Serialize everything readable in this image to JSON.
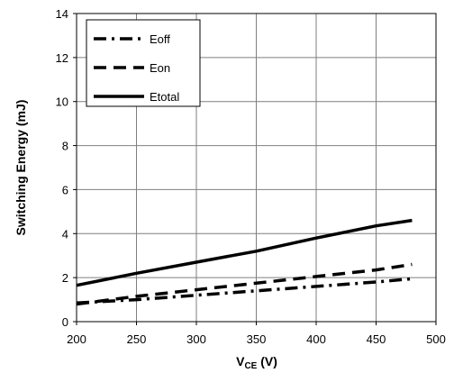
{
  "chart_data": {
    "type": "line",
    "xlabel_main": "V",
    "xlabel_sub": "CE",
    "xlabel_unit": " (V)",
    "ylabel": "Switching Energy (mJ)",
    "xlim": [
      200,
      500
    ],
    "ylim": [
      0,
      14
    ],
    "x_ticks": [
      "200",
      "250",
      "300",
      "350",
      "400",
      "450",
      "500"
    ],
    "y_ticks": [
      "0",
      "2",
      "4",
      "6",
      "8",
      "10",
      "12",
      "14"
    ],
    "grid": true,
    "legend_position": "top-left",
    "series": [
      {
        "name": "Eoff",
        "style": "dash-dot",
        "color": "#000000",
        "x": [
          200,
          250,
          300,
          350,
          400,
          450,
          480
        ],
        "y": [
          0.85,
          1.0,
          1.2,
          1.4,
          1.6,
          1.8,
          1.95
        ]
      },
      {
        "name": "Eon",
        "style": "dash",
        "color": "#000000",
        "x": [
          200,
          250,
          300,
          350,
          400,
          450,
          480
        ],
        "y": [
          0.8,
          1.15,
          1.45,
          1.75,
          2.05,
          2.35,
          2.6
        ]
      },
      {
        "name": "Etotal",
        "style": "solid",
        "color": "#000000",
        "x": [
          200,
          250,
          300,
          350,
          400,
          450,
          480
        ],
        "y": [
          1.65,
          2.2,
          2.7,
          3.2,
          3.8,
          4.35,
          4.6
        ]
      }
    ]
  }
}
